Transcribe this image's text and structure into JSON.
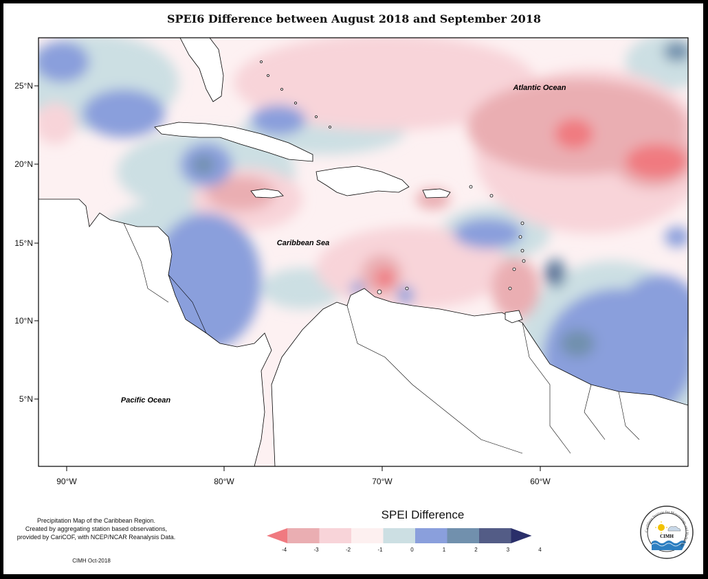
{
  "title": "SPEI6 Difference between August 2018 and September 2018",
  "ocean_labels": {
    "atlantic": "Atlantic Ocean",
    "caribbean": "Caribbean Sea",
    "pacific": "Pacific Ocean"
  },
  "lat_ticks": [
    "25°N",
    "20°N",
    "15°N",
    "10°N",
    "5°N"
  ],
  "lon_ticks": [
    "90°W",
    "80°W",
    "70°W",
    "60°W"
  ],
  "legend": {
    "title": "SPEI Difference",
    "tick_labels": [
      "-4",
      "-3",
      "-2",
      "-1",
      "0",
      "1",
      "2",
      "3",
      "4"
    ],
    "colors": [
      "#f07a80",
      "#eaaeb2",
      "#f8d4d9",
      "#fdf0f0",
      "#ccdfe3",
      "#8a9fdc",
      "#7190ad",
      "#535c86",
      "#2a2f6a"
    ]
  },
  "footnote_lines": [
    "Precipitation Map of the Caribbean Region.",
    "Created by aggregating station based observations,",
    "provided by CariCOF, with NCEP/NCAR Reanalysis Data."
  ],
  "credit": "CIMH Oct-2018",
  "logo": {
    "ring_text": "Caribbean Institute for Meteorology and Hydrology",
    "center_text": "CIMH",
    "icon": "cimh-sun-cloud-waves-logo"
  }
}
